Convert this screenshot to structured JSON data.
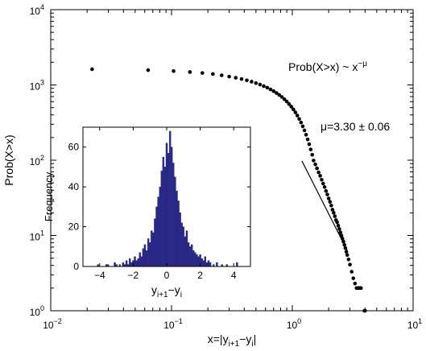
{
  "chart_data": [
    {
      "type": "scatter",
      "xlabel_parts": [
        "x=|y",
        "i+1",
        "−y",
        "i",
        "|"
      ],
      "ylabel": "Prob(X>x)",
      "xscale": "log",
      "yscale": "log",
      "xlim": [
        0.01,
        10
      ],
      "ylim": [
        1,
        10000
      ],
      "x_tick_values": [
        0.01,
        0.1,
        1,
        10
      ],
      "x_tick_labels": [
        [
          "10",
          "−2"
        ],
        [
          "10",
          "−1"
        ],
        [
          "10",
          "0"
        ],
        [
          "10",
          "1"
        ]
      ],
      "y_tick_values": [
        1,
        10,
        100,
        1000,
        10000
      ],
      "y_tick_labels": [
        [
          "10",
          "0"
        ],
        [
          "10",
          "1"
        ],
        [
          "10",
          "2"
        ],
        [
          "10",
          "3"
        ],
        [
          "10",
          "4"
        ]
      ],
      "grid": false,
      "annotations": {
        "formula_main": "Prob(X>x) ~ x",
        "formula_exp": "−μ",
        "mu_value": "μ=3.30 ± 0.06"
      },
      "fit_line": {
        "x": [
          1.2,
          2.85
        ],
        "y": [
          98,
          6.3
        ]
      },
      "points": [
        [
          0.022,
          1618
        ],
        [
          0.064,
          1573
        ],
        [
          0.104,
          1528
        ],
        [
          0.142,
          1484
        ],
        [
          0.18,
          1441
        ],
        [
          0.22,
          1398
        ],
        [
          0.26,
          1343
        ],
        [
          0.3,
          1293
        ],
        [
          0.34,
          1245
        ],
        [
          0.38,
          1198
        ],
        [
          0.42,
          1151
        ],
        [
          0.46,
          1104
        ],
        [
          0.5,
          1057
        ],
        [
          0.54,
          1011
        ],
        [
          0.58,
          965
        ],
        [
          0.62,
          919
        ],
        [
          0.66,
          873
        ],
        [
          0.7,
          827
        ],
        [
          0.74,
          781
        ],
        [
          0.78,
          736
        ],
        [
          0.82,
          691
        ],
        [
          0.86,
          646
        ],
        [
          0.9,
          602
        ],
        [
          0.94,
          558
        ],
        [
          0.98,
          515
        ],
        [
          1.02,
          473
        ],
        [
          1.06,
          432
        ],
        [
          1.1,
          392
        ],
        [
          1.14,
          353
        ],
        [
          1.18,
          317
        ],
        [
          1.22,
          282
        ],
        [
          1.26,
          249
        ],
        [
          1.3,
          218
        ],
        [
          1.34,
          189
        ],
        [
          1.38,
          163
        ],
        [
          1.42,
          139
        ],
        [
          1.46,
          118
        ],
        [
          1.5,
          99
        ],
        [
          1.55,
          88
        ],
        [
          1.6,
          78
        ],
        [
          1.65,
          69
        ],
        [
          1.7,
          62
        ],
        [
          1.75,
          55
        ],
        [
          1.8,
          49
        ],
        [
          1.85,
          44
        ],
        [
          1.9,
          39
        ],
        [
          1.95,
          35
        ],
        [
          2.0,
          31
        ],
        [
          2.05,
          28
        ],
        [
          2.1,
          25
        ],
        [
          2.15,
          22
        ],
        [
          2.2,
          20
        ],
        [
          2.25,
          18
        ],
        [
          2.3,
          16
        ],
        [
          2.35,
          15
        ],
        [
          2.4,
          13.5
        ],
        [
          2.45,
          12.2
        ],
        [
          2.5,
          11
        ],
        [
          2.55,
          10
        ],
        [
          2.6,
          9.1
        ],
        [
          2.65,
          8.3
        ],
        [
          2.7,
          7.5
        ],
        [
          2.75,
          6.8
        ],
        [
          2.8,
          6.1
        ],
        [
          2.85,
          5.5
        ],
        [
          2.92,
          4.8
        ],
        [
          3.0,
          4.1
        ],
        [
          3.1,
          3.3
        ],
        [
          3.2,
          2.7
        ],
        [
          3.3,
          2.3
        ],
        [
          3.4,
          2.0
        ],
        [
          3.5,
          2.0
        ],
        [
          3.6,
          2.0
        ],
        [
          3.7,
          2.0
        ],
        [
          3.95,
          1.0
        ],
        [
          4.0,
          1.0
        ]
      ]
    },
    {
      "type": "bar",
      "name": "inset histogram",
      "xlabel_parts": [
        "y",
        "i+1",
        "−y",
        "i"
      ],
      "ylabel": "Frequency",
      "xlim": [
        -5,
        5
      ],
      "ylim": [
        0,
        70
      ],
      "x_tick_values": [
        -4,
        -2,
        0,
        2,
        4
      ],
      "x_tick_labels": [
        "−4",
        "−2",
        "0",
        "2",
        "4"
      ],
      "y_tick_values": [
        0,
        20,
        40,
        60
      ],
      "y_tick_labels": [
        "0",
        "20",
        "40",
        "60"
      ],
      "bar_color": "#2b2b8f",
      "bin_width": 0.1,
      "bins": [
        [
          -4.1,
          1
        ],
        [
          -3.6,
          1
        ],
        [
          -3.5,
          1
        ],
        [
          -3.1,
          2
        ],
        [
          -3.0,
          1
        ],
        [
          -2.8,
          1
        ],
        [
          -2.6,
          2
        ],
        [
          -2.5,
          1
        ],
        [
          -2.4,
          3
        ],
        [
          -2.3,
          1
        ],
        [
          -2.2,
          4
        ],
        [
          -2.1,
          2
        ],
        [
          -2.0,
          3
        ],
        [
          -1.9,
          5
        ],
        [
          -1.8,
          3
        ],
        [
          -1.7,
          4
        ],
        [
          -1.6,
          7
        ],
        [
          -1.5,
          5
        ],
        [
          -1.4,
          9
        ],
        [
          -1.3,
          11
        ],
        [
          -1.2,
          8
        ],
        [
          -1.1,
          14
        ],
        [
          -1.0,
          12
        ],
        [
          -0.9,
          18
        ],
        [
          -0.8,
          17
        ],
        [
          -0.7,
          24
        ],
        [
          -0.6,
          30
        ],
        [
          -0.5,
          35
        ],
        [
          -0.4,
          40
        ],
        [
          -0.3,
          48
        ],
        [
          -0.2,
          55
        ],
        [
          -0.1,
          50
        ],
        [
          0.0,
          62
        ],
        [
          0.1,
          57
        ],
        [
          0.2,
          68
        ],
        [
          0.3,
          60
        ],
        [
          0.4,
          52
        ],
        [
          0.5,
          45
        ],
        [
          0.6,
          38
        ],
        [
          0.7,
          33
        ],
        [
          0.8,
          27
        ],
        [
          0.9,
          22
        ],
        [
          1.0,
          20
        ],
        [
          1.1,
          15
        ],
        [
          1.2,
          18
        ],
        [
          1.3,
          12
        ],
        [
          1.4,
          10
        ],
        [
          1.5,
          11
        ],
        [
          1.6,
          8
        ],
        [
          1.7,
          7
        ],
        [
          1.8,
          6
        ],
        [
          1.9,
          5
        ],
        [
          2.0,
          6
        ],
        [
          2.1,
          4
        ],
        [
          2.2,
          3
        ],
        [
          2.3,
          5
        ],
        [
          2.4,
          2
        ],
        [
          2.5,
          3
        ],
        [
          2.6,
          2
        ],
        [
          2.8,
          1
        ],
        [
          3.0,
          2
        ],
        [
          3.3,
          1
        ],
        [
          3.6,
          1
        ],
        [
          4.2,
          2
        ]
      ]
    }
  ]
}
